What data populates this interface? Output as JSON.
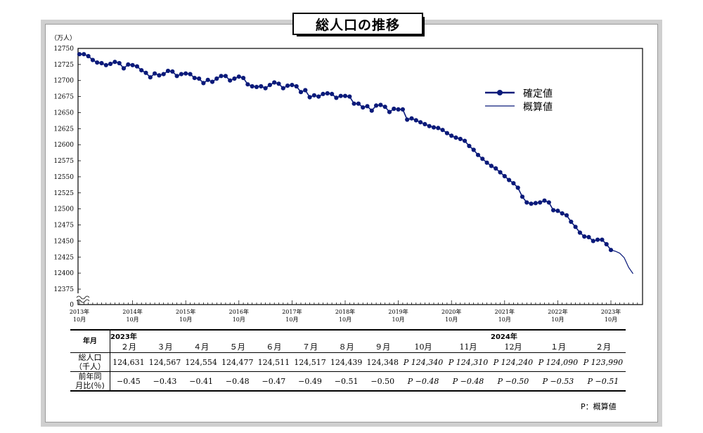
{
  "title": "総人口の推移",
  "chart_data": {
    "type": "line",
    "title": "総人口の推移",
    "unit_label": "（万人）",
    "ylim": [
      12375,
      12750
    ],
    "y_ticks": [
      "12750",
      "12725",
      "12700",
      "12675",
      "12650",
      "12625",
      "12600",
      "12575",
      "12550",
      "12525",
      "12500",
      "12475",
      "12450",
      "12425",
      "12400",
      "12375"
    ],
    "y_zero_label": "0",
    "x_tick_labels": [
      {
        "year": "2013年",
        "month": "10月"
      },
      {
        "year": "2014年",
        "month": "10月"
      },
      {
        "year": "2015年",
        "month": "10月"
      },
      {
        "year": "2016年",
        "month": "10月"
      },
      {
        "year": "2017年",
        "month": "10月"
      },
      {
        "year": "2018年",
        "month": "10月"
      },
      {
        "year": "2019年",
        "month": "10月"
      },
      {
        "year": "2020年",
        "month": "10月"
      },
      {
        "year": "2021年",
        "month": "10月"
      },
      {
        "year": "2022年",
        "month": "10月"
      },
      {
        "year": "2023年",
        "month": "10月"
      }
    ],
    "legend": [
      {
        "label": "確定値",
        "color": "#0a1a7a",
        "style": "line-marker"
      },
      {
        "label": "概算値",
        "color": "#0a1a7a",
        "style": "line"
      }
    ],
    "legend_position": "top-right",
    "series": [
      {
        "name": "確定値",
        "start": "2013年10月",
        "values": [
          12741,
          12741,
          12738,
          12732,
          12728,
          12727,
          12724,
          12726,
          12729,
          12727,
          12719,
          12725,
          12724,
          12722,
          12716,
          12712,
          12705,
          12711,
          12708,
          12710,
          12715,
          12714,
          12707,
          12710,
          12711,
          12710,
          12704,
          12703,
          12696,
          12701,
          12698,
          12703,
          12707,
          12707,
          12700,
          12703,
          12706,
          12704,
          12694,
          12691,
          12690,
          12691,
          12688,
          12693,
          12697,
          12695,
          12688,
          12692,
          12693,
          12691,
          12682,
          12685,
          12674,
          12677,
          12675,
          12679,
          12680,
          12679,
          12673,
          12676,
          12676,
          12675,
          12664,
          12664,
          12658,
          12660,
          12653,
          12661,
          12662,
          12659,
          12651,
          12656,
          12655,
          12655,
          12639,
          12641,
          12638,
          12635,
          12632,
          12629,
          12627,
          12626,
          12623,
          12618,
          12614,
          12611,
          12609,
          12606,
          12598,
          12592,
          12584,
          12578,
          12572,
          12567,
          12563,
          12557,
          12551,
          12545,
          12540,
          12533,
          12519,
          12510,
          12508,
          12509,
          12510,
          12513,
          12510,
          12498,
          12497,
          12493,
          12490,
          12480,
          12472,
          12463,
          12457,
          12456,
          12450,
          12452,
          12452,
          12445,
          12436
        ]
      },
      {
        "name": "概算値",
        "start": "2023年10月",
        "values": [
          12436,
          12434,
          12431,
          12424,
          12409,
          12399
        ]
      }
    ]
  },
  "table": {
    "header_label": "年月",
    "year_start": "2023年",
    "year_2024": "2024年",
    "months": [
      "２月",
      "３月",
      "４月",
      "５月",
      "６月",
      "７月",
      "８月",
      "９月",
      "10月",
      "11月",
      "12月",
      "１月",
      "２月"
    ],
    "row_population_label_1": "総人口",
    "row_population_label_2": "（千人）",
    "population": [
      "124,631",
      "124,567",
      "124,554",
      "124,477",
      "124,511",
      "124,517",
      "124,439",
      "124,348",
      "124,340",
      "124,310",
      "124,240",
      "124,090",
      "123,990"
    ],
    "row_change_label_1": "前年同",
    "row_change_label_2": "月比(％)",
    "change": [
      "−0.45",
      "−0.43",
      "−0.41",
      "−0.48",
      "−0.47",
      "−0.49",
      "−0.51",
      "−0.50",
      "−0.48",
      "−0.48",
      "−0.50",
      "−0.53",
      "−0.51"
    ],
    "provisional_flags": [
      false,
      false,
      false,
      false,
      false,
      false,
      false,
      false,
      true,
      true,
      true,
      true,
      true
    ],
    "provisional_mark": "P"
  },
  "note": "P：概算値"
}
